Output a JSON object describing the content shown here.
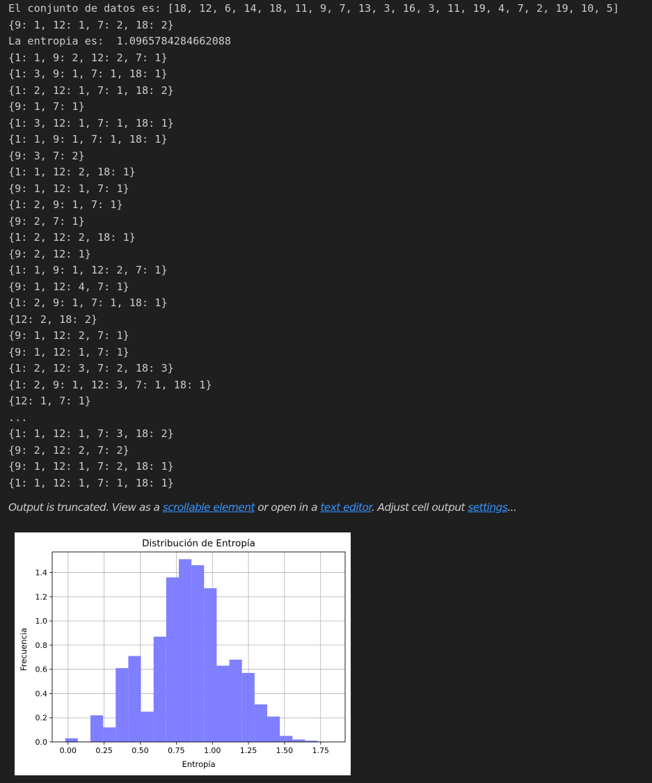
{
  "output_lines": [
    "El conjunto de datos es: [18, 12, 6, 14, 18, 11, 9, 7, 13, 3, 16, 3, 11, 19, 4, 7, 2, 19, 10, 5]",
    "{9: 1, 12: 1, 7: 2, 18: 2}",
    "La entropia es:  1.0965784284662088",
    "{1: 1, 9: 2, 12: 2, 7: 1}",
    "{1: 3, 9: 1, 7: 1, 18: 1}",
    "{1: 2, 12: 1, 7: 1, 18: 2}",
    "{9: 1, 7: 1}",
    "{1: 3, 12: 1, 7: 1, 18: 1}",
    "{1: 1, 9: 1, 7: 1, 18: 1}",
    "{9: 3, 7: 2}",
    "{1: 1, 12: 2, 18: 1}",
    "{9: 1, 12: 1, 7: 1}",
    "{1: 2, 9: 1, 7: 1}",
    "{9: 2, 7: 1}",
    "{1: 2, 12: 2, 18: 1}",
    "{9: 2, 12: 1}",
    "{1: 1, 9: 1, 12: 2, 7: 1}",
    "{9: 1, 12: 4, 7: 1}",
    "{1: 2, 9: 1, 7: 1, 18: 1}",
    "{12: 2, 18: 2}",
    "{9: 1, 12: 2, 7: 1}",
    "{9: 1, 12: 1, 7: 1}",
    "{1: 2, 12: 3, 7: 2, 18: 3}",
    "{1: 2, 9: 1, 12: 3, 7: 1, 18: 1}",
    "{12: 1, 7: 1}",
    "...",
    "{1: 1, 12: 1, 7: 3, 18: 2}",
    "{9: 2, 12: 2, 7: 2}",
    "{9: 1, 12: 1, 7: 2, 18: 1}",
    "{1: 1, 12: 1, 7: 1, 18: 1}"
  ],
  "truncation": {
    "t1": "Output is truncated. View as a ",
    "link_scrollable": "scrollable element",
    "t2": " or open in a ",
    "link_editor": "text editor",
    "t3": ". Adjust cell output ",
    "link_settings": "settings",
    "t4": "..."
  },
  "colors": {
    "background": "#1f1f1f",
    "text": "#cccccc",
    "link": "#3794ff",
    "bar": "#7f7fff"
  },
  "chart_data": {
    "type": "bar",
    "title": "Distribución de Entropía",
    "xlabel": "Entropía",
    "ylabel": "Frecuencia",
    "bin_edges": [
      -0.02,
      0.0675,
      0.155,
      0.2425,
      0.33,
      0.4175,
      0.505,
      0.5925,
      0.68,
      0.7675,
      0.855,
      0.9425,
      1.03,
      1.1175,
      1.205,
      1.2925,
      1.38,
      1.4675,
      1.555,
      1.6425,
      1.73,
      1.8175
    ],
    "values": [
      0.03,
      0.0,
      0.22,
      0.12,
      0.61,
      0.71,
      0.25,
      0.87,
      1.36,
      1.51,
      1.46,
      1.27,
      0.63,
      0.68,
      0.57,
      0.31,
      0.21,
      0.05,
      0.02,
      0.01,
      0.0
    ],
    "xlim": [
      -0.11,
      1.92
    ],
    "ylim": [
      0,
      1.57
    ],
    "xticks": [
      0.0,
      0.25,
      0.5,
      0.75,
      1.0,
      1.25,
      1.5,
      1.75
    ],
    "xtick_labels": [
      "0.00",
      "0.25",
      "0.50",
      "0.75",
      "1.00",
      "1.25",
      "1.50",
      "1.75"
    ],
    "yticks": [
      0.0,
      0.2,
      0.4,
      0.6,
      0.8,
      1.0,
      1.2,
      1.4
    ],
    "ytick_labels": [
      "0.0",
      "0.2",
      "0.4",
      "0.6",
      "0.8",
      "1.0",
      "1.2",
      "1.4"
    ],
    "grid": true
  }
}
